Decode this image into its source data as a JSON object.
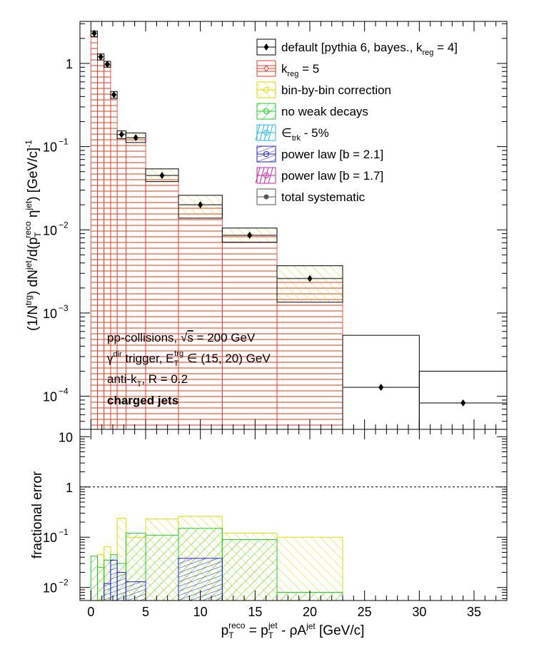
{
  "chart_data": [
    {
      "type": "histogram",
      "panel": "top",
      "yscale": "log",
      "ylim": [
        4e-05,
        3.2
      ],
      "xlim": [
        -1,
        38
      ],
      "ylabel_parts": {
        "a": "(1/N",
        "a_sup": "trg",
        "b": ") dN",
        "b_sup": "jet",
        "c": "/d(p",
        "c_sub": "T",
        "c_sup": "reco",
        "d": " η",
        "d_sup": "jet",
        "e": ") [GeV/c]",
        "e_sup": "-1"
      },
      "yticks": [
        {
          "v": 0.0001,
          "base": "10",
          "exp": "−4"
        },
        {
          "v": 0.001,
          "base": "10",
          "exp": "−3"
        },
        {
          "v": 0.01,
          "base": "10",
          "exp": "−2"
        },
        {
          "v": 0.1,
          "base": "10",
          "exp": "−1"
        },
        {
          "v": 1,
          "base": "1",
          "exp": ""
        }
      ],
      "bins": [
        {
          "lo": 0,
          "hi": 0.6,
          "x": 0.3,
          "y": 2.3,
          "err_lo": 2.1,
          "err_hi": 2.45
        },
        {
          "lo": 0.6,
          "hi": 1.2,
          "x": 0.9,
          "y": 1.2,
          "err_lo": 1.1,
          "err_hi": 1.3
        },
        {
          "lo": 1.2,
          "hi": 1.8,
          "x": 1.5,
          "y": 0.98,
          "err_lo": 0.9,
          "err_hi": 1.06
        },
        {
          "lo": 1.8,
          "hi": 2.4,
          "x": 2.1,
          "y": 0.42,
          "err_lo": 0.38,
          "err_hi": 0.46
        },
        {
          "lo": 2.4,
          "hi": 3.2,
          "x": 2.8,
          "y": 0.14,
          "err_lo": 0.125,
          "err_hi": 0.155
        },
        {
          "lo": 3.2,
          "hi": 5.0,
          "x": 4.1,
          "y": 0.128,
          "err_lo": 0.112,
          "err_hi": 0.146
        },
        {
          "lo": 5.0,
          "hi": 8.0,
          "x": 6.5,
          "y": 0.045,
          "err_lo": 0.038,
          "err_hi": 0.054
        },
        {
          "lo": 8.0,
          "hi": 12.0,
          "x": 10.0,
          "y": 0.02,
          "err_lo": 0.0138,
          "err_hi": 0.026
        },
        {
          "lo": 12.0,
          "hi": 17.0,
          "x": 14.5,
          "y": 0.0086,
          "err_lo": 0.0071,
          "err_hi": 0.0105
        },
        {
          "lo": 17.0,
          "hi": 23.0,
          "x": 20.0,
          "y": 0.0026,
          "err_lo": 0.00135,
          "err_hi": 0.0037
        },
        {
          "lo": 23.0,
          "hi": 30.0,
          "x": 26.5,
          "y": 0.000128,
          "err_lo": 4e-05,
          "err_hi": 0.00054
        },
        {
          "lo": 30.0,
          "hi": 38.0,
          "x": 34.0,
          "y": 8.3e-05,
          "err_lo": 4e-05,
          "err_hi": 0.0002
        }
      ],
      "kreg5_hatch_top_bins": [
        "0-0.6:2.3",
        "0.6-1.2:1.2",
        "1.2-1.8:0.98",
        "1.8-2.4:0.42",
        "2.4-3.2:0.14",
        "3.2-5:0.128",
        "5-8:0.045",
        "8-12:0.02",
        "12-17:0.0086",
        "17-23:0.0026"
      ],
      "legend": [
        {
          "label": "default [pythia 6, bayes., k",
          "sub": "reg",
          "tail": " = 4]",
          "color": "#000000",
          "marker": "diamond"
        },
        {
          "label": "k",
          "sub": "reg",
          "tail": " = 5",
          "color": "#e8341c",
          "marker": "open-diamond"
        },
        {
          "label": "bin-by-bin correction",
          "sub": "",
          "tail": "",
          "color": "#dddd00",
          "marker": "open-circle"
        },
        {
          "label": "no weak decays",
          "sub": "",
          "tail": "",
          "color": "#22cc22",
          "marker": "open-circle"
        },
        {
          "label": "∈",
          "sub": "trk",
          "tail": " - 5%",
          "color": "#22bbdd",
          "marker": "open-circle"
        },
        {
          "label": "power law [b = 2.1]",
          "sub": "",
          "tail": "",
          "color": "#2222cc",
          "marker": "open-circle"
        },
        {
          "label": "power law [b = 1.7]",
          "sub": "",
          "tail": "",
          "color": "#cc22aa",
          "marker": "open-circle"
        },
        {
          "label": "total systematic",
          "sub": "",
          "tail": "",
          "color": "#555555",
          "marker": "filled-circle"
        }
      ],
      "annotations": {
        "line1_a": "pp-collisions, √",
        "line1_b": "s",
        "line1_c": " = 200 GeV",
        "line2_a": "γ",
        "line2_a_sup": "dir",
        "line2_b": " trigger, E",
        "line2_b_sub": "T",
        "line2_b_sup": "trg",
        "line2_c": " ∈ (15, 20) GeV",
        "line3_a": "anti-k",
        "line3_a_sub": "T",
        "line3_b": ", R = 0.2",
        "line4": "charged jets"
      }
    },
    {
      "type": "histogram",
      "panel": "bottom",
      "yscale": "log",
      "ylim": [
        0.0055,
        14
      ],
      "xlim": [
        -1,
        38
      ],
      "ylabel": "fractional error",
      "yticks": [
        {
          "v": 0.01,
          "base": "10",
          "exp": "−2"
        },
        {
          "v": 0.1,
          "base": "10",
          "exp": "−1"
        },
        {
          "v": 1,
          "base": "1",
          "exp": ""
        },
        {
          "v": 10,
          "base": "10",
          "exp": ""
        }
      ],
      "xticks": [
        "0",
        "5",
        "10",
        "15",
        "20",
        "25",
        "30",
        "35"
      ],
      "xlabel_parts": {
        "a": "p",
        "a_sub": "T",
        "a_sup": "reco",
        "b": " = p",
        "b_sub": "T",
        "b_sup": "jet",
        "c": " - ρA",
        "c_sup": "jet",
        "d": " [GeV/c]"
      },
      "reference_line": 1,
      "series": [
        {
          "name": "bin-by-bin correction",
          "color": "#dddd00",
          "bins": [
            [
              0.6,
              1.2,
              0.045
            ],
            [
              1.2,
              1.8,
              0.065
            ],
            [
              2.4,
              3.2,
              0.24
            ],
            [
              3.2,
              5,
              0.1
            ],
            [
              5,
              8,
              0.23
            ],
            [
              8,
              12,
              0.26
            ],
            [
              12,
              17,
              0.12
            ],
            [
              17,
              23,
              0.1
            ]
          ]
        },
        {
          "name": "no weak decays",
          "color": "#22cc22",
          "bins": [
            [
              0,
              0.6,
              0.042
            ],
            [
              0.6,
              1.2,
              0.025
            ],
            [
              1.2,
              1.8,
              0.035
            ],
            [
              1.8,
              2.4,
              0.045
            ],
            [
              2.4,
              3.2,
              0.03
            ],
            [
              3.2,
              5,
              0.12
            ],
            [
              5,
              8,
              0.11
            ],
            [
              8,
              12,
              0.15
            ],
            [
              12,
              17,
              0.09
            ],
            [
              17,
              23,
              0.008
            ]
          ]
        },
        {
          "name": "power law [b = 2.1]",
          "color": "#2222cc",
          "bins": [
            [
              1.2,
              1.8,
              0.012
            ],
            [
              1.8,
              2.4,
              0.035
            ],
            [
              2.4,
              3.2,
              0.02
            ],
            [
              3.2,
              5,
              0.013
            ],
            [
              8,
              12,
              0.038
            ]
          ]
        }
      ]
    }
  ]
}
